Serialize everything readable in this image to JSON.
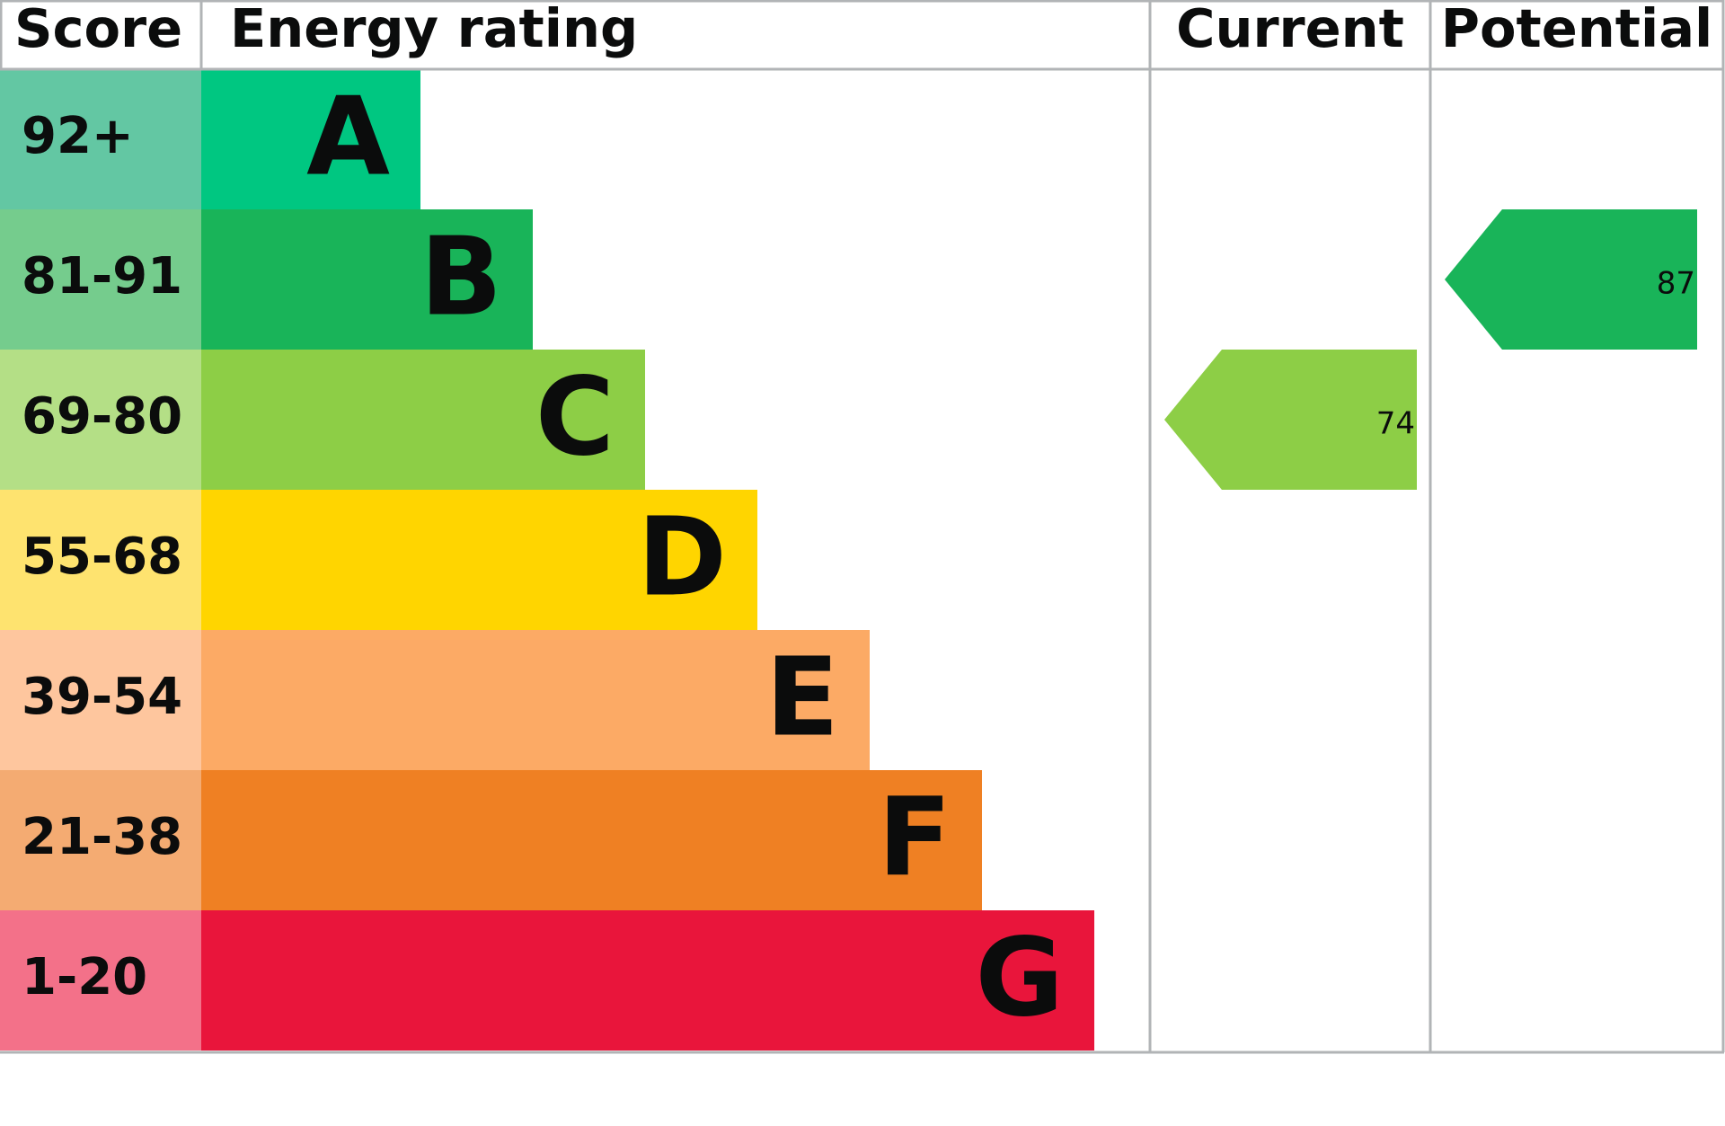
{
  "header": {
    "score": "Score",
    "rating": "Energy rating",
    "current": "Current",
    "potential": "Potential"
  },
  "bands": [
    {
      "score": "92+",
      "letter": "A",
      "color": "#00c781",
      "score_color": "#63c7a3"
    },
    {
      "score": "81-91",
      "letter": "B",
      "color": "#19b459",
      "score_color": "#75cc8d"
    },
    {
      "score": "69-80",
      "letter": "C",
      "color": "#8dce46",
      "score_color": "#b4df86"
    },
    {
      "score": "55-68",
      "letter": "D",
      "color": "#ffd500",
      "score_color": "#fee36f"
    },
    {
      "score": "39-54",
      "letter": "E",
      "color": "#fcaa65",
      "score_color": "#fec69e"
    },
    {
      "score": "21-38",
      "letter": "F",
      "color": "#ef8023",
      "score_color": "#f4ab72"
    },
    {
      "score": "1-20",
      "letter": "G",
      "color": "#e9153b",
      "score_color": "#f37189"
    }
  ],
  "current": {
    "value": 74
  },
  "potential": {
    "value": 87
  }
}
